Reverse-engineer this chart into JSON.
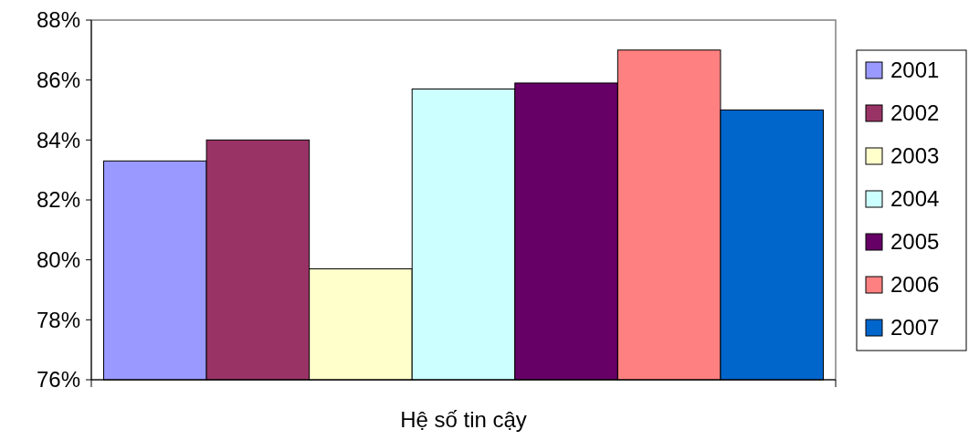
{
  "chart_data": {
    "type": "bar",
    "categories": [
      "Hệ số tin cậy"
    ],
    "series": [
      {
        "name": "2001",
        "color": "#9999ff",
        "values": [
          83.3
        ]
      },
      {
        "name": "2002",
        "color": "#993366",
        "values": [
          84.0
        ]
      },
      {
        "name": "2003",
        "color": "#ffffcc",
        "values": [
          79.7
        ]
      },
      {
        "name": "2004",
        "color": "#ccffff",
        "values": [
          85.7
        ]
      },
      {
        "name": "2005",
        "color": "#660066",
        "values": [
          85.9
        ]
      },
      {
        "name": "2006",
        "color": "#ff8080",
        "values": [
          87.0
        ]
      },
      {
        "name": "2007",
        "color": "#0066cc",
        "values": [
          85.0
        ]
      }
    ],
    "ylim": [
      76,
      88
    ],
    "yticks": [
      {
        "value": 76,
        "label": "76%"
      },
      {
        "value": 78,
        "label": "78%"
      },
      {
        "value": 80,
        "label": "80%"
      },
      {
        "value": 82,
        "label": "82%"
      },
      {
        "value": 84,
        "label": "84%"
      },
      {
        "value": 86,
        "label": "86%"
      },
      {
        "value": 88,
        "label": "88%"
      }
    ],
    "grid": false,
    "legend": "right"
  }
}
